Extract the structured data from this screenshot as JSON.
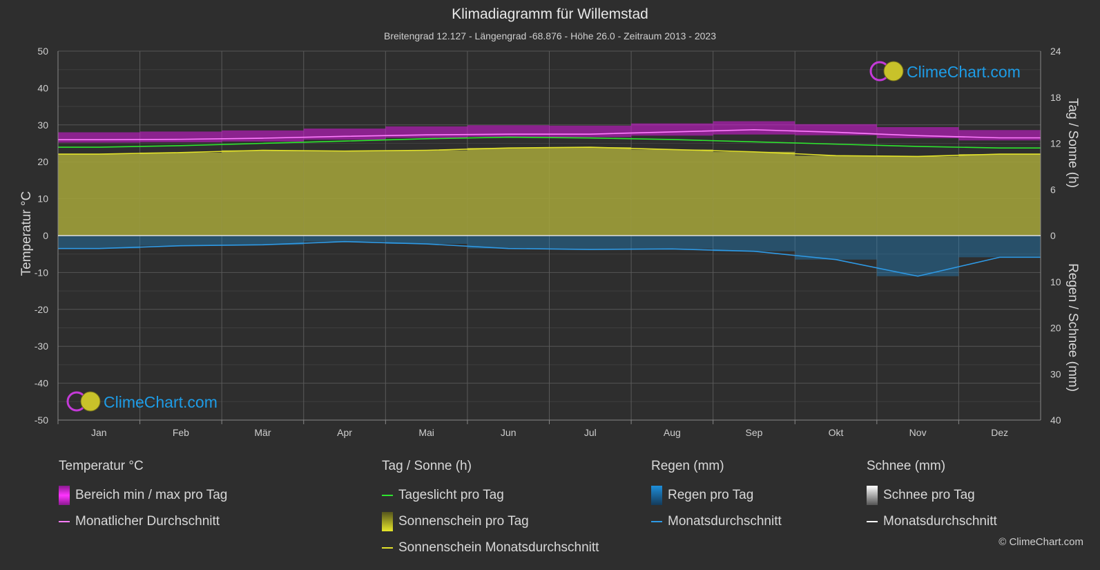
{
  "header": {
    "title": "Klimadiagramm für Willemstad",
    "subtitle": "Breitengrad 12.127 - Längengrad -68.876 - Höhe 26.0 - Zeitraum 2013 - 2023"
  },
  "logo_text": "ClimeChart.com",
  "copyright": "© ClimeChart.com",
  "colors": {
    "background": "#2e2e2e",
    "temp_range": "#d81adf",
    "temp_avg": "#ff7dff",
    "daylight": "#2ee62e",
    "sunshine_fill": "#a6a63a",
    "sunshine_avg": "#e3e32a",
    "rain": "#1e8fdb",
    "rain_avg": "#2e9ae6",
    "snow": "#ffffff"
  },
  "chart_data": {
    "type": "area",
    "title": "Klimadiagramm für Willemstad",
    "categories": [
      "Jan",
      "Feb",
      "Mär",
      "Apr",
      "Mai",
      "Jun",
      "Jul",
      "Aug",
      "Sep",
      "Okt",
      "Nov",
      "Dez"
    ],
    "y_left": {
      "label": "Temperatur °C",
      "range": [
        -50,
        50
      ],
      "ticks": [
        "50",
        "40",
        "30",
        "20",
        "10",
        "0",
        "-10",
        "-20",
        "-30",
        "-40",
        "-50"
      ]
    },
    "y_right_top": {
      "label": "Tag / Sonne (h)",
      "range": [
        0,
        24
      ],
      "ticks": [
        "24",
        "18",
        "12",
        "6",
        "0"
      ]
    },
    "y_right_bottom": {
      "label": "Regen / Schnee (mm)",
      "range": [
        0,
        40
      ],
      "ticks": [
        "10",
        "20",
        "30",
        "40"
      ]
    },
    "grid": true,
    "series": [
      {
        "name": "Bereich min / max pro Tag",
        "kind": "range",
        "axis": "temperature",
        "min": [
          25.2,
          25.3,
          25.5,
          26.0,
          26.5,
          26.8,
          26.7,
          27.1,
          27.4,
          27.2,
          26.4,
          25.8
        ],
        "max": [
          28.0,
          28.2,
          28.5,
          29.0,
          29.6,
          29.9,
          29.8,
          30.4,
          31.0,
          30.2,
          29.4,
          28.6
        ]
      },
      {
        "name": "Monatlicher Durchschnitt",
        "kind": "line",
        "axis": "temperature",
        "values": [
          26.0,
          26.1,
          26.4,
          26.9,
          27.3,
          27.5,
          27.5,
          28.1,
          28.7,
          28.0,
          27.1,
          26.5
        ]
      },
      {
        "name": "Tageslicht pro Tag",
        "kind": "line",
        "axis": "hours",
        "values": [
          11.5,
          11.7,
          12.0,
          12.3,
          12.6,
          12.8,
          12.7,
          12.5,
          12.2,
          11.9,
          11.6,
          11.4
        ]
      },
      {
        "name": "Sonnenschein pro Tag",
        "kind": "area",
        "axis": "hours",
        "values": [
          10.6,
          10.8,
          11.1,
          11.0,
          11.1,
          11.4,
          11.5,
          11.2,
          10.9,
          10.4,
          10.3,
          10.6
        ]
      },
      {
        "name": "Sonnenschein Monatsdurchschnitt",
        "kind": "line",
        "axis": "hours",
        "values": [
          10.6,
          10.8,
          11.1,
          11.0,
          11.1,
          11.4,
          11.5,
          11.2,
          10.9,
          10.4,
          10.3,
          10.6
        ]
      },
      {
        "name": "Regen pro Tag",
        "kind": "bars",
        "axis": "precipitation",
        "values": [
          2.8,
          2.2,
          2.0,
          1.3,
          1.8,
          2.8,
          3.0,
          2.9,
          3.4,
          5.2,
          8.8,
          4.7
        ]
      },
      {
        "name": "Monatsdurchschnitt",
        "kind": "line",
        "axis": "precipitation",
        "values": [
          2.8,
          2.2,
          2.0,
          1.3,
          1.8,
          2.8,
          3.0,
          2.9,
          3.4,
          5.2,
          8.8,
          4.7
        ]
      },
      {
        "name": "Schnee pro Tag",
        "kind": "bars",
        "axis": "precipitation",
        "values": [
          0,
          0,
          0,
          0,
          0,
          0,
          0,
          0,
          0,
          0,
          0,
          0
        ]
      }
    ]
  },
  "legend": {
    "temperature": {
      "heading": "Temperatur °C",
      "range": "Bereich min / max pro Tag",
      "avg": "Monatlicher Durchschnitt"
    },
    "sun": {
      "heading": "Tag / Sonne (h)",
      "daylight": "Tageslicht pro Tag",
      "sunshine": "Sonnenschein pro Tag",
      "sunshine_avg": "Sonnenschein Monatsdurchschnitt"
    },
    "rain": {
      "heading": "Regen (mm)",
      "rain": "Regen pro Tag",
      "avg": "Monatsdurchschnitt"
    },
    "snow": {
      "heading": "Schnee (mm)",
      "snow": "Schnee pro Tag",
      "avg": "Monatsdurchschnitt"
    }
  }
}
